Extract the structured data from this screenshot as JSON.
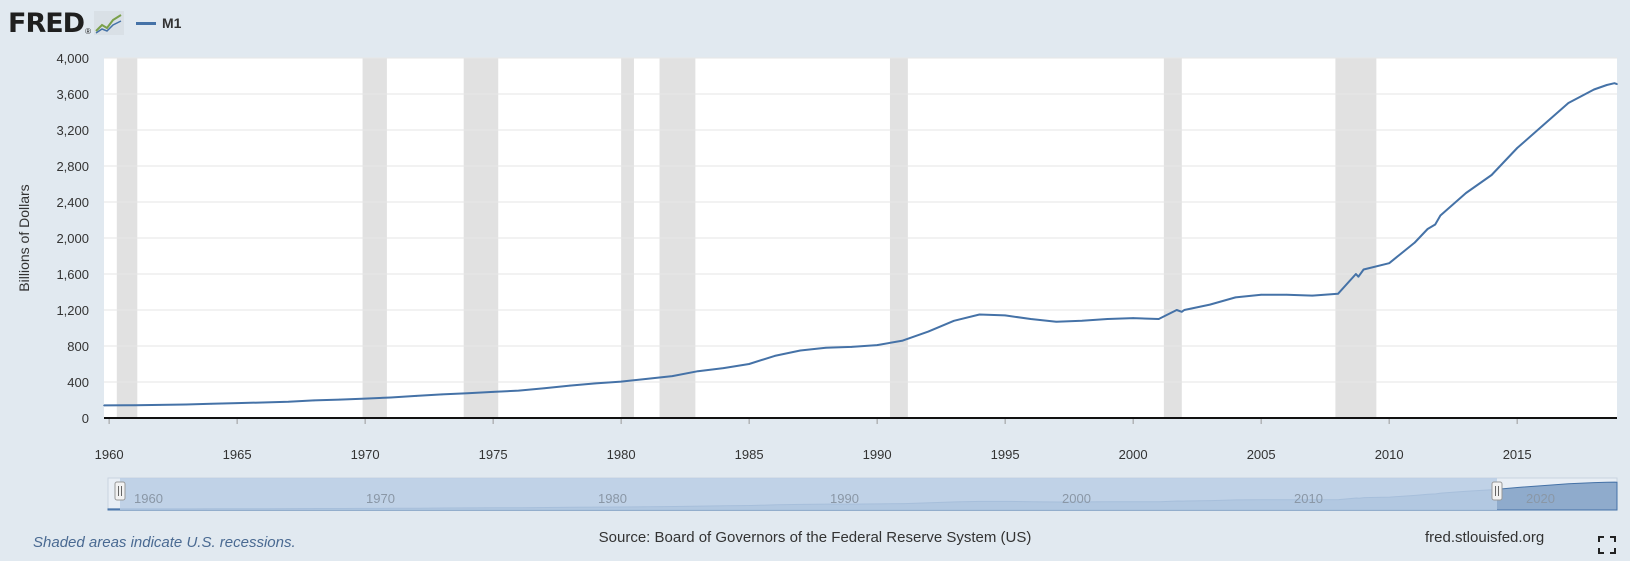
{
  "header": {
    "logo_text": "FRED",
    "logo_reg": "®",
    "legend_label": "M1"
  },
  "footer": {
    "note": "Shaded areas indicate U.S. recessions.",
    "source": "Source: Board of Governors of the Federal Reserve System (US)",
    "site": "fred.stlouisfed.org"
  },
  "colors": {
    "series": "#4572a7",
    "recession": "#e1e1e1",
    "background": "#e1e9f0",
    "navigator_fill": "#b9cce4"
  },
  "icons": [
    "logo-chart-icon",
    "fullscreen-icon",
    "navigator-handle-icon"
  ],
  "chart_data": {
    "type": "line",
    "title": "",
    "xlabel": "",
    "ylabel": "Billions of Dollars",
    "xlim": [
      1959.8,
      2018.9
    ],
    "ylim": [
      0,
      4000
    ],
    "y_ticks": [
      0,
      400,
      800,
      1200,
      1600,
      2000,
      2400,
      2800,
      3200,
      3600,
      4000
    ],
    "y_tick_labels": [
      "0",
      "400",
      "800",
      "1,200",
      "1,600",
      "2,000",
      "2,400",
      "2,800",
      "3,200",
      "3,600",
      "4,000"
    ],
    "x_ticks": [
      1960,
      1965,
      1970,
      1975,
      1980,
      1985,
      1990,
      1995,
      2000,
      2005,
      2010,
      2015
    ],
    "x_tick_labels": [
      "1960",
      "1965",
      "1970",
      "1975",
      "1980",
      "1985",
      "1990",
      "1995",
      "2000",
      "2005",
      "2010",
      "2015"
    ],
    "grid": true,
    "recessions": [
      [
        1960.3,
        1961.1
      ],
      [
        1969.9,
        1970.85
      ],
      [
        1973.85,
        1975.2
      ],
      [
        1980.0,
        1980.5
      ],
      [
        1981.5,
        1982.9
      ],
      [
        1990.5,
        1991.2
      ],
      [
        2001.2,
        2001.9
      ],
      [
        2007.9,
        2009.5
      ]
    ],
    "series": [
      {
        "name": "M1",
        "x": [
          1959.8,
          1961,
          1962,
          1963,
          1964,
          1965,
          1966,
          1967,
          1968,
          1969,
          1970,
          1971,
          1972,
          1973,
          1974,
          1975,
          1976,
          1977,
          1978,
          1979,
          1980,
          1981,
          1982,
          1983,
          1984,
          1985,
          1986,
          1987,
          1988,
          1989,
          1990,
          1991,
          1992,
          1993,
          1994,
          1995,
          1996,
          1997,
          1998,
          1999,
          2000,
          2001,
          2001.7,
          2001.9,
          2002,
          2003,
          2004,
          2005,
          2006,
          2007,
          2008,
          2008.7,
          2008.8,
          2009,
          2010,
          2011,
          2011.5,
          2011.8,
          2012,
          2013,
          2014,
          2015,
          2016,
          2017,
          2018,
          2018.5,
          2018.8,
          2018.9
        ],
        "values": [
          140,
          142,
          146,
          150,
          158,
          165,
          172,
          180,
          195,
          205,
          215,
          228,
          245,
          262,
          275,
          290,
          305,
          330,
          360,
          385,
          405,
          435,
          465,
          520,
          555,
          600,
          690,
          750,
          780,
          790,
          810,
          860,
          960,
          1080,
          1150,
          1140,
          1100,
          1070,
          1080,
          1100,
          1110,
          1100,
          1200,
          1180,
          1200,
          1260,
          1340,
          1370,
          1370,
          1360,
          1380,
          1600,
          1570,
          1650,
          1720,
          1950,
          2100,
          2150,
          2250,
          2500,
          2700,
          3000,
          3250,
          3500,
          3650,
          3700,
          3720,
          3710
        ]
      }
    ]
  }
}
